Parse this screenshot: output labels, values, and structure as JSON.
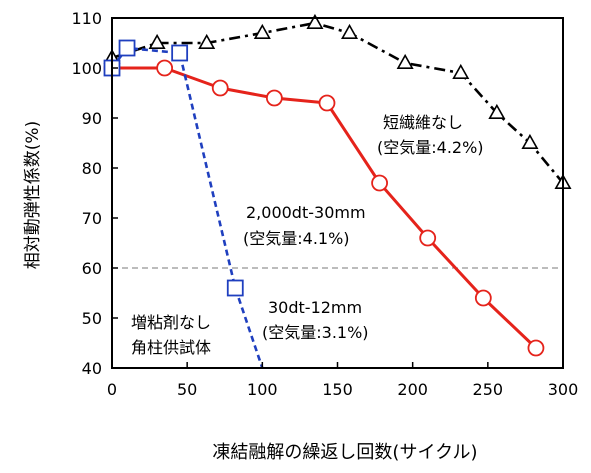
{
  "chart_data": {
    "type": "line",
    "xlabel": "凍結融解の繰返し回数(サイクル)",
    "ylabel": "相対動弾性係数(%)",
    "xlim": [
      0,
      300
    ],
    "ylim": [
      40,
      110
    ],
    "x_ticks": [
      "0",
      "50",
      "100",
      "150",
      "200",
      "250",
      "300"
    ],
    "y_ticks": [
      "40",
      "50",
      "60",
      "70",
      "80",
      "90",
      "100",
      "110"
    ],
    "reference_line": {
      "y": 60,
      "style": "dashed"
    },
    "series": [
      {
        "name": "短繊維なし (空気量:4.2%)",
        "color": "#000000",
        "line": "dash-dot",
        "marker": "triangle",
        "x": [
          0,
          30,
          63,
          100,
          135,
          158,
          195,
          232,
          256,
          278,
          300
        ],
        "y": [
          102,
          105,
          105,
          107,
          109,
          107,
          101,
          99,
          91,
          85,
          77
        ]
      },
      {
        "name": "2,000dt-30mm (空気量:4.1%)",
        "color": "#e5231b",
        "line": "solid",
        "marker": "circle",
        "x": [
          0,
          35,
          72,
          108,
          143,
          178,
          210,
          247,
          282
        ],
        "y": [
          100,
          100,
          96,
          94,
          93,
          77,
          66,
          54,
          44
        ]
      },
      {
        "name": "30dt-12mm (空気量:3.1%)",
        "color": "#1f3fbf",
        "line": "dashed",
        "marker": "square",
        "x": [
          0,
          10,
          45,
          82,
          100
        ],
        "y": [
          100,
          104,
          103,
          56,
          40
        ]
      }
    ]
  },
  "annotations": {
    "no_fiber_1": "短繊維なし",
    "no_fiber_2": "(空気量:4.2%)",
    "fiber2000_1": "2,000dt-30mm",
    "fiber2000_2": "(空気量:4.1%)",
    "fiber30_1": "30dt-12mm",
    "fiber30_2": "(空気量:3.1%)",
    "note_1": "増粘剤なし",
    "note_2": "角柱供試体"
  }
}
